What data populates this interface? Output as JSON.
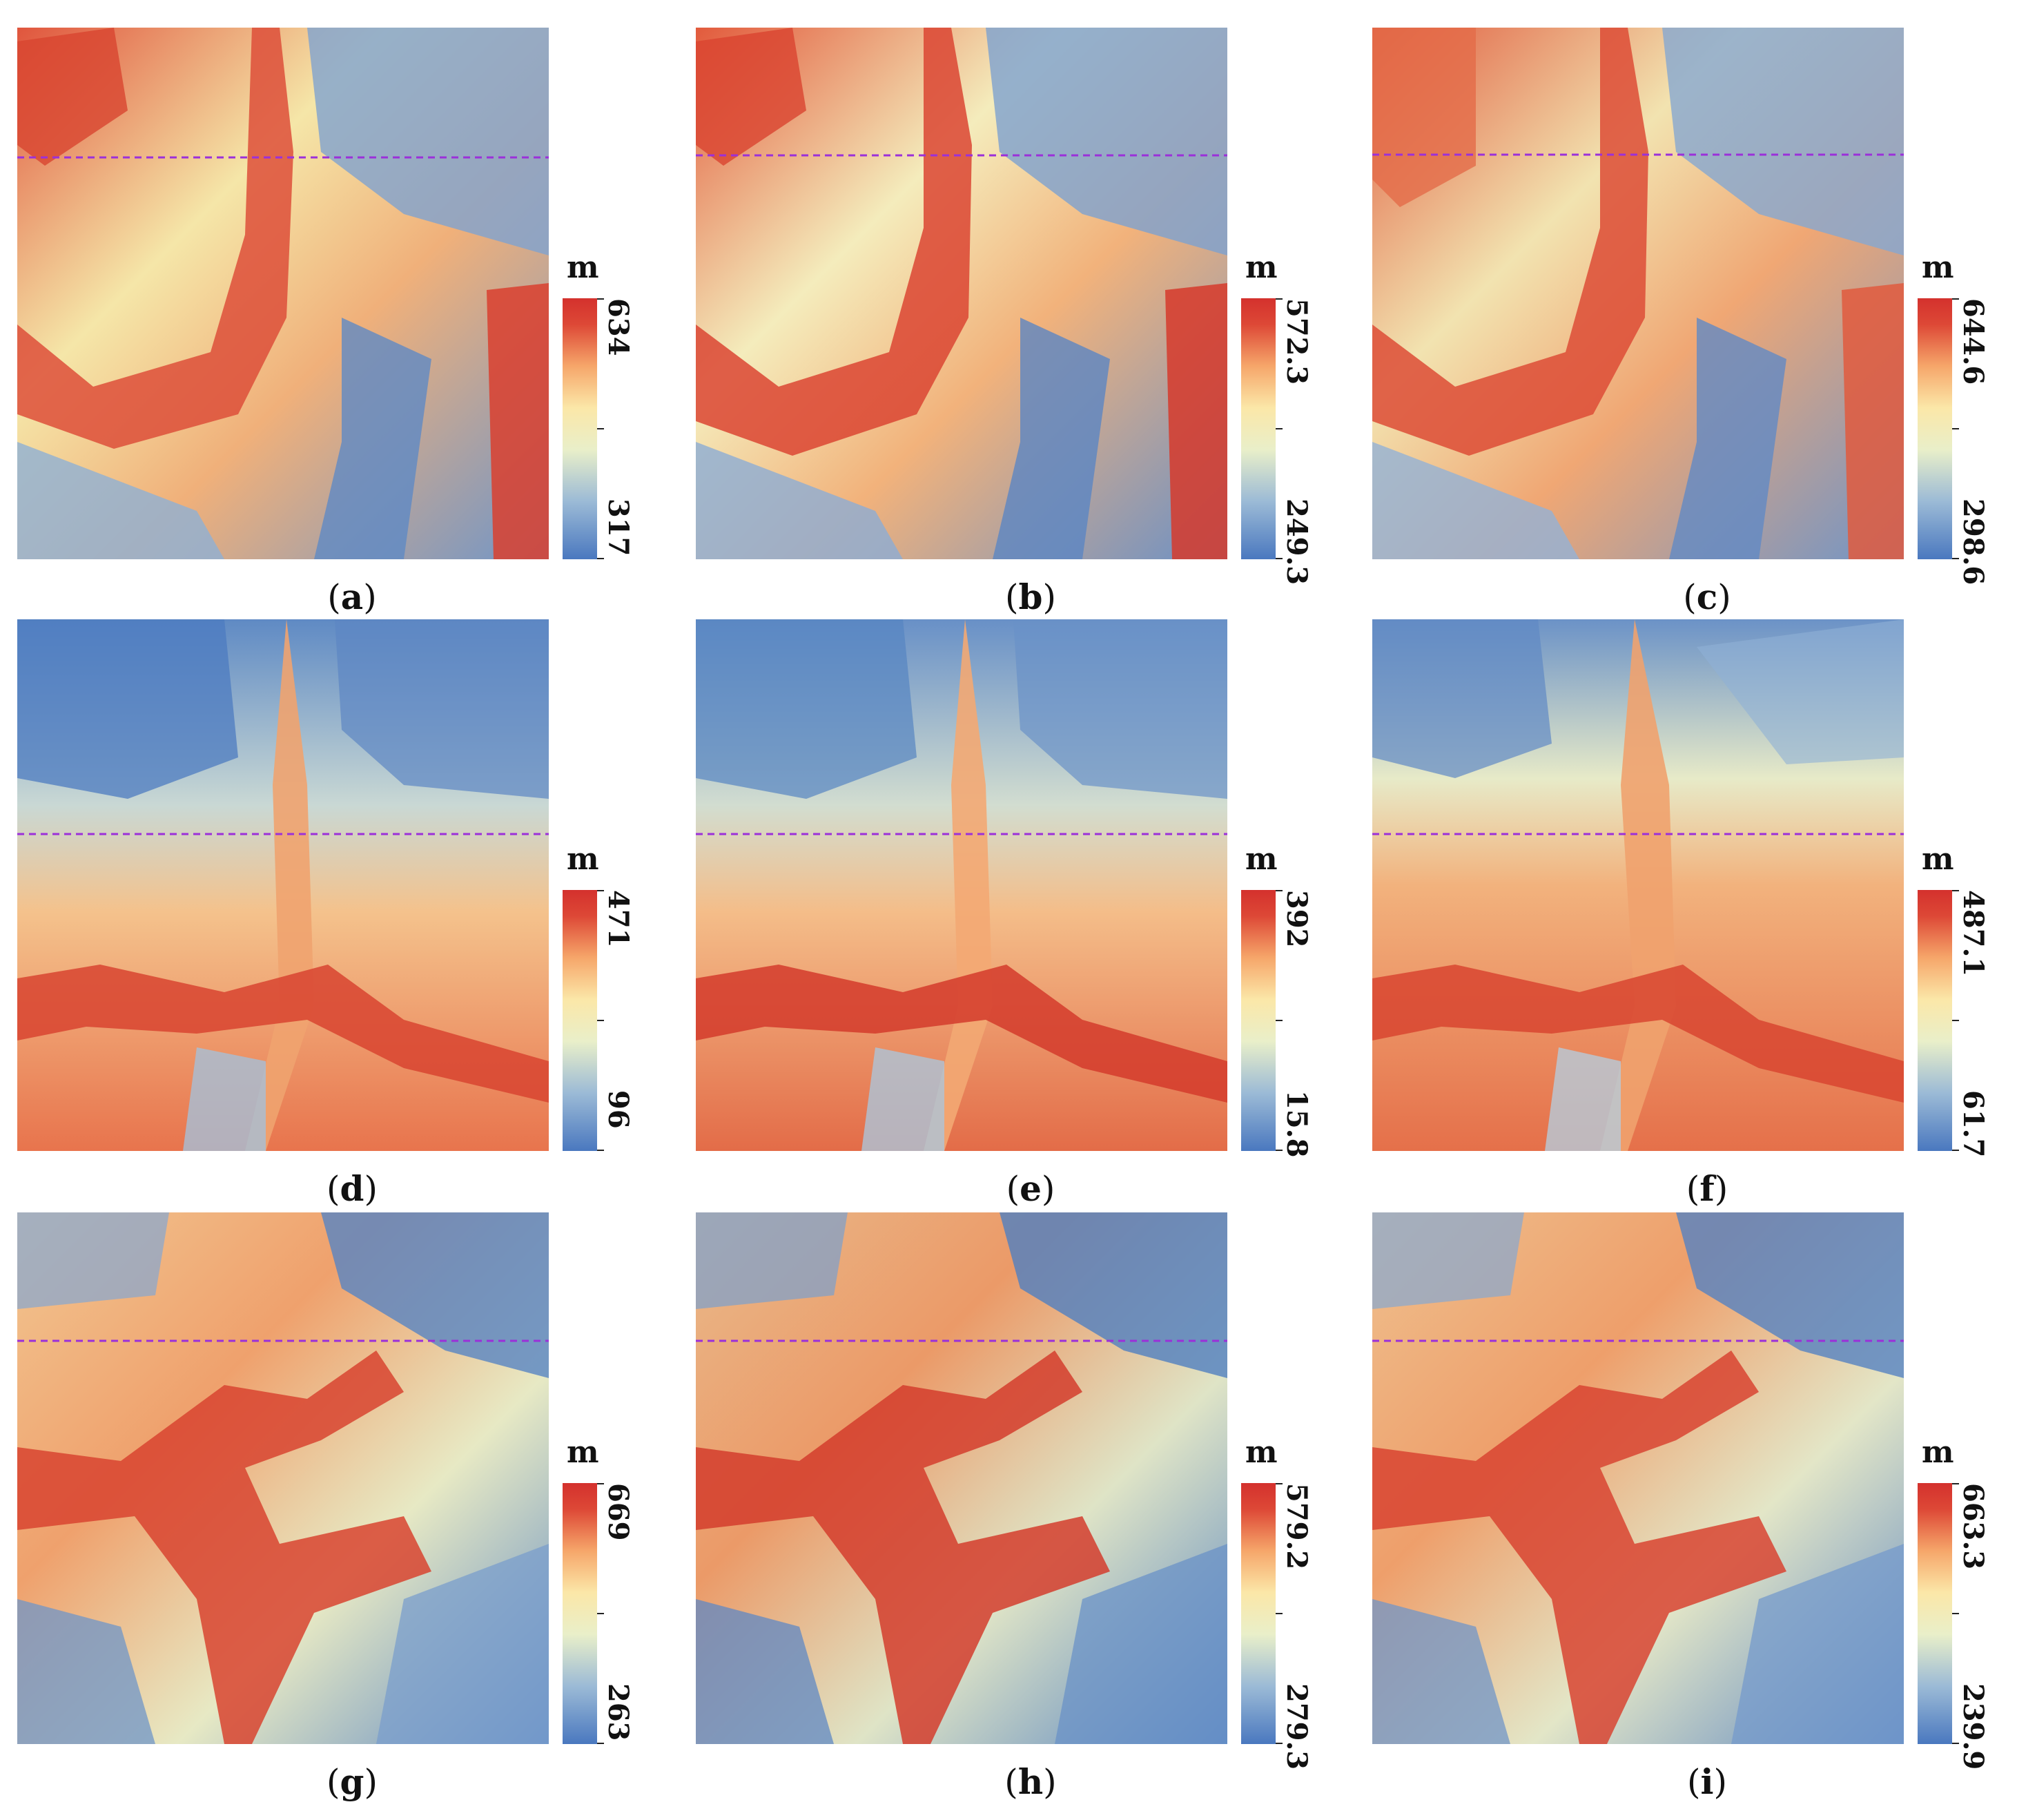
{
  "panels": [
    {
      "id": "a",
      "label_open": "(",
      "label_letter": "a",
      "label_close": ")",
      "unit": "m",
      "max": "634",
      "min": "317"
    },
    {
      "id": "b",
      "label_open": "(",
      "label_letter": "b",
      "label_close": ")",
      "unit": "m",
      "max": "572.3",
      "min": "249.3"
    },
    {
      "id": "c",
      "label_open": "(",
      "label_letter": "c",
      "label_close": ")",
      "unit": "m",
      "max": "644.6",
      "min": "298.6"
    },
    {
      "id": "d",
      "label_open": "(",
      "label_letter": "d",
      "label_close": ")",
      "unit": "m",
      "max": "471",
      "min": "96"
    },
    {
      "id": "e",
      "label_open": "(",
      "label_letter": "e",
      "label_close": ")",
      "unit": "m",
      "max": "392",
      "min": "15.8"
    },
    {
      "id": "f",
      "label_open": "(",
      "label_letter": "f",
      "label_close": ")",
      "unit": "m",
      "max": "487.1",
      "min": "61.7"
    },
    {
      "id": "g",
      "label_open": "(",
      "label_letter": "g",
      "label_close": ")",
      "unit": "m",
      "max": "669",
      "min": "263"
    },
    {
      "id": "h",
      "label_open": "(",
      "label_letter": "h",
      "label_close": ")",
      "unit": "m",
      "max": "579.2",
      "min": "279.3"
    },
    {
      "id": "i",
      "label_open": "(",
      "label_letter": "i",
      "label_close": ")",
      "unit": "m",
      "max": "663.3",
      "min": "239.9"
    }
  ],
  "colors": {
    "low": "#4a78bf",
    "mid": "#f3f4c8",
    "high": "#d4312d",
    "profile_line": "#9b30d9"
  }
}
